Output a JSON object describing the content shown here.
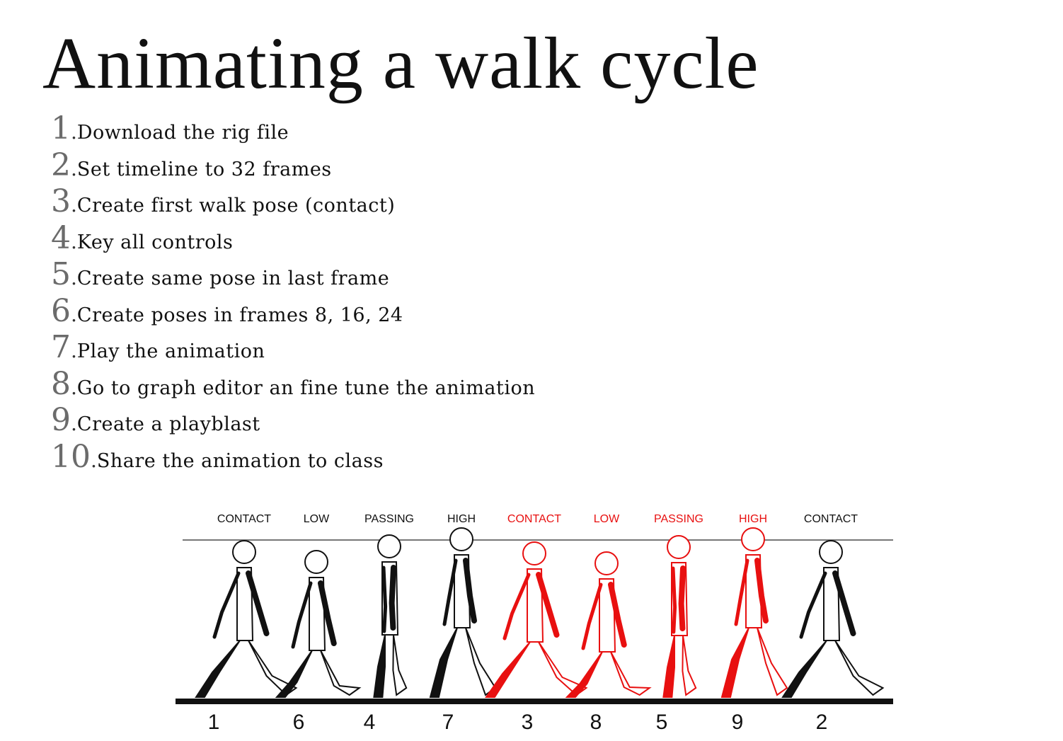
{
  "title": "Animating a walk cycle",
  "steps": [
    {
      "num": "1",
      "text": "Download the rig file"
    },
    {
      "num": "2",
      "text": "Set timeline to 32 frames"
    },
    {
      "num": "3",
      "text": "Create first walk pose (contact)"
    },
    {
      "num": "4",
      "text": "Key all controls"
    },
    {
      "num": "5",
      "text": "Create same pose in last frame"
    },
    {
      "num": "6",
      "text": "Create poses in frames 8, 16, 24"
    },
    {
      "num": "7",
      "text": "Play the animation"
    },
    {
      "num": "8",
      "text": "Go to graph editor an fine tune the animation"
    },
    {
      "num": "9",
      "text": "Create a playblast"
    },
    {
      "num": "10",
      "text": "Share the animation to class"
    }
  ],
  "walk_cycle": {
    "poses": [
      {
        "label": "CONTACT",
        "frame": "1",
        "highlight": false
      },
      {
        "label": "LOW",
        "frame": "6",
        "highlight": false
      },
      {
        "label": "PASSING",
        "frame": "4",
        "highlight": false
      },
      {
        "label": "HIGH",
        "frame": "7",
        "highlight": false
      },
      {
        "label": "CONTACT",
        "frame": "3",
        "highlight": true
      },
      {
        "label": "LOW",
        "frame": "8",
        "highlight": true
      },
      {
        "label": "PASSING",
        "frame": "5",
        "highlight": true
      },
      {
        "label": "HIGH",
        "frame": "9",
        "highlight": true
      },
      {
        "label": "CONTACT",
        "frame": "2",
        "highlight": false
      }
    ],
    "colors": {
      "normal": "#111111",
      "highlight": "#e81010",
      "line": "#777777"
    }
  }
}
